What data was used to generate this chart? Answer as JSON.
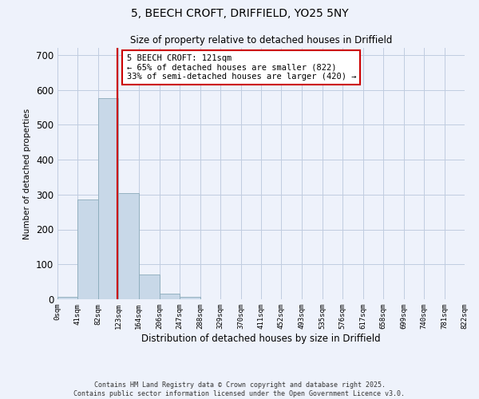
{
  "title": "5, BEECH CROFT, DRIFFIELD, YO25 5NY",
  "subtitle": "Size of property relative to detached houses in Driffield",
  "bar_edges": [
    0,
    41,
    82,
    123,
    164,
    206,
    247,
    288,
    329,
    370,
    411,
    452,
    493,
    535,
    576,
    617,
    658,
    699,
    740,
    781,
    822
  ],
  "bar_heights": [
    8,
    285,
    575,
    305,
    70,
    15,
    8,
    0,
    0,
    0,
    0,
    0,
    0,
    0,
    0,
    0,
    0,
    0,
    0,
    0
  ],
  "bar_color": "#c8d8e8",
  "bar_edge_color": "#8aaaba",
  "vline_x": 121,
  "vline_color": "#cc0000",
  "ylabel": "Number of detached properties",
  "xlabel": "Distribution of detached houses by size in Driffield",
  "yticks": [
    0,
    100,
    200,
    300,
    400,
    500,
    600,
    700
  ],
  "ylim": [
    0,
    720
  ],
  "xlim": [
    0,
    822
  ],
  "xtick_labels": [
    "0sqm",
    "41sqm",
    "82sqm",
    "123sqm",
    "164sqm",
    "206sqm",
    "247sqm",
    "288sqm",
    "329sqm",
    "370sqm",
    "411sqm",
    "452sqm",
    "493sqm",
    "535sqm",
    "576sqm",
    "617sqm",
    "658sqm",
    "699sqm",
    "740sqm",
    "781sqm",
    "822sqm"
  ],
  "xtick_positions": [
    0,
    41,
    82,
    123,
    164,
    206,
    247,
    288,
    329,
    370,
    411,
    452,
    493,
    535,
    576,
    617,
    658,
    699,
    740,
    781,
    822
  ],
  "annotation_title": "5 BEECH CROFT: 121sqm",
  "annotation_line1": "← 65% of detached houses are smaller (822)",
  "annotation_line2": "33% of semi-detached houses are larger (420) →",
  "annotation_box_color": "#ffffff",
  "annotation_border_color": "#cc0000",
  "background_color": "#eef2fb",
  "grid_color": "#c0cce0",
  "footer1": "Contains HM Land Registry data © Crown copyright and database right 2025.",
  "footer2": "Contains public sector information licensed under the Open Government Licence v3.0."
}
